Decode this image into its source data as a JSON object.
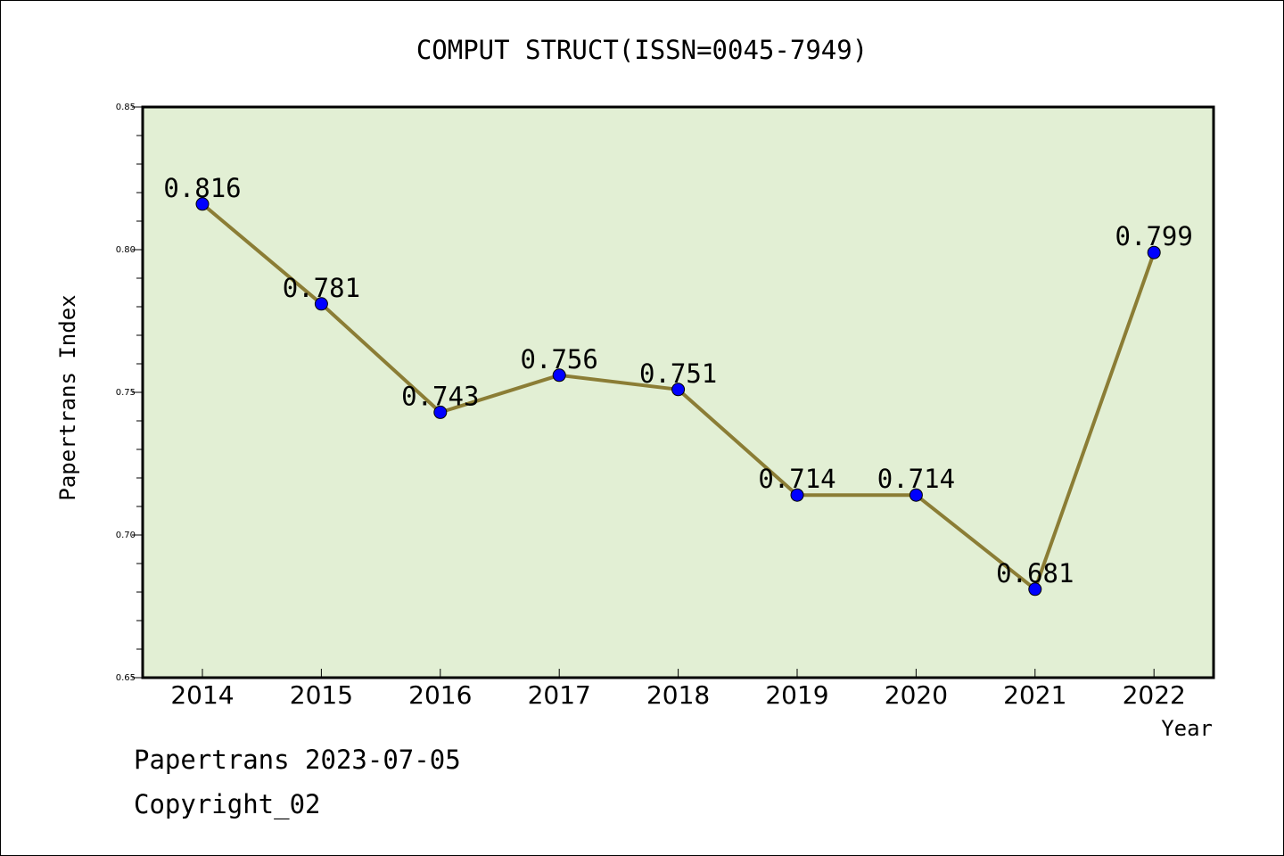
{
  "chart_data": {
    "type": "line",
    "title": "COMPUT STRUCT(ISSN=0045-7949)",
    "xlabel": "Year",
    "ylabel": "Papertrans Index",
    "categories": [
      "2014",
      "2015",
      "2016",
      "2017",
      "2018",
      "2019",
      "2020",
      "2021",
      "2022"
    ],
    "series": [
      {
        "values": [
          0.816,
          0.781,
          0.743,
          0.756,
          0.751,
          0.714,
          0.714,
          0.681,
          0.799
        ],
        "labels": [
          "0.816",
          "0.781",
          "0.743",
          "0.756",
          "0.751",
          "0.714",
          "0.714",
          "0.681",
          "0.799"
        ],
        "line_color": "#8b7d35",
        "marker_color": "#0000ff"
      }
    ],
    "ylim": [
      0.65,
      0.85
    ],
    "yticks": [
      "0.65",
      "0.70",
      "0.75",
      "0.80",
      "0.85"
    ],
    "plot_background": "#e2efd4",
    "grid": false,
    "legend": "none"
  },
  "footer": {
    "date_line": "Papertrans 2023-07-05",
    "copyright": "Copyright_02"
  }
}
